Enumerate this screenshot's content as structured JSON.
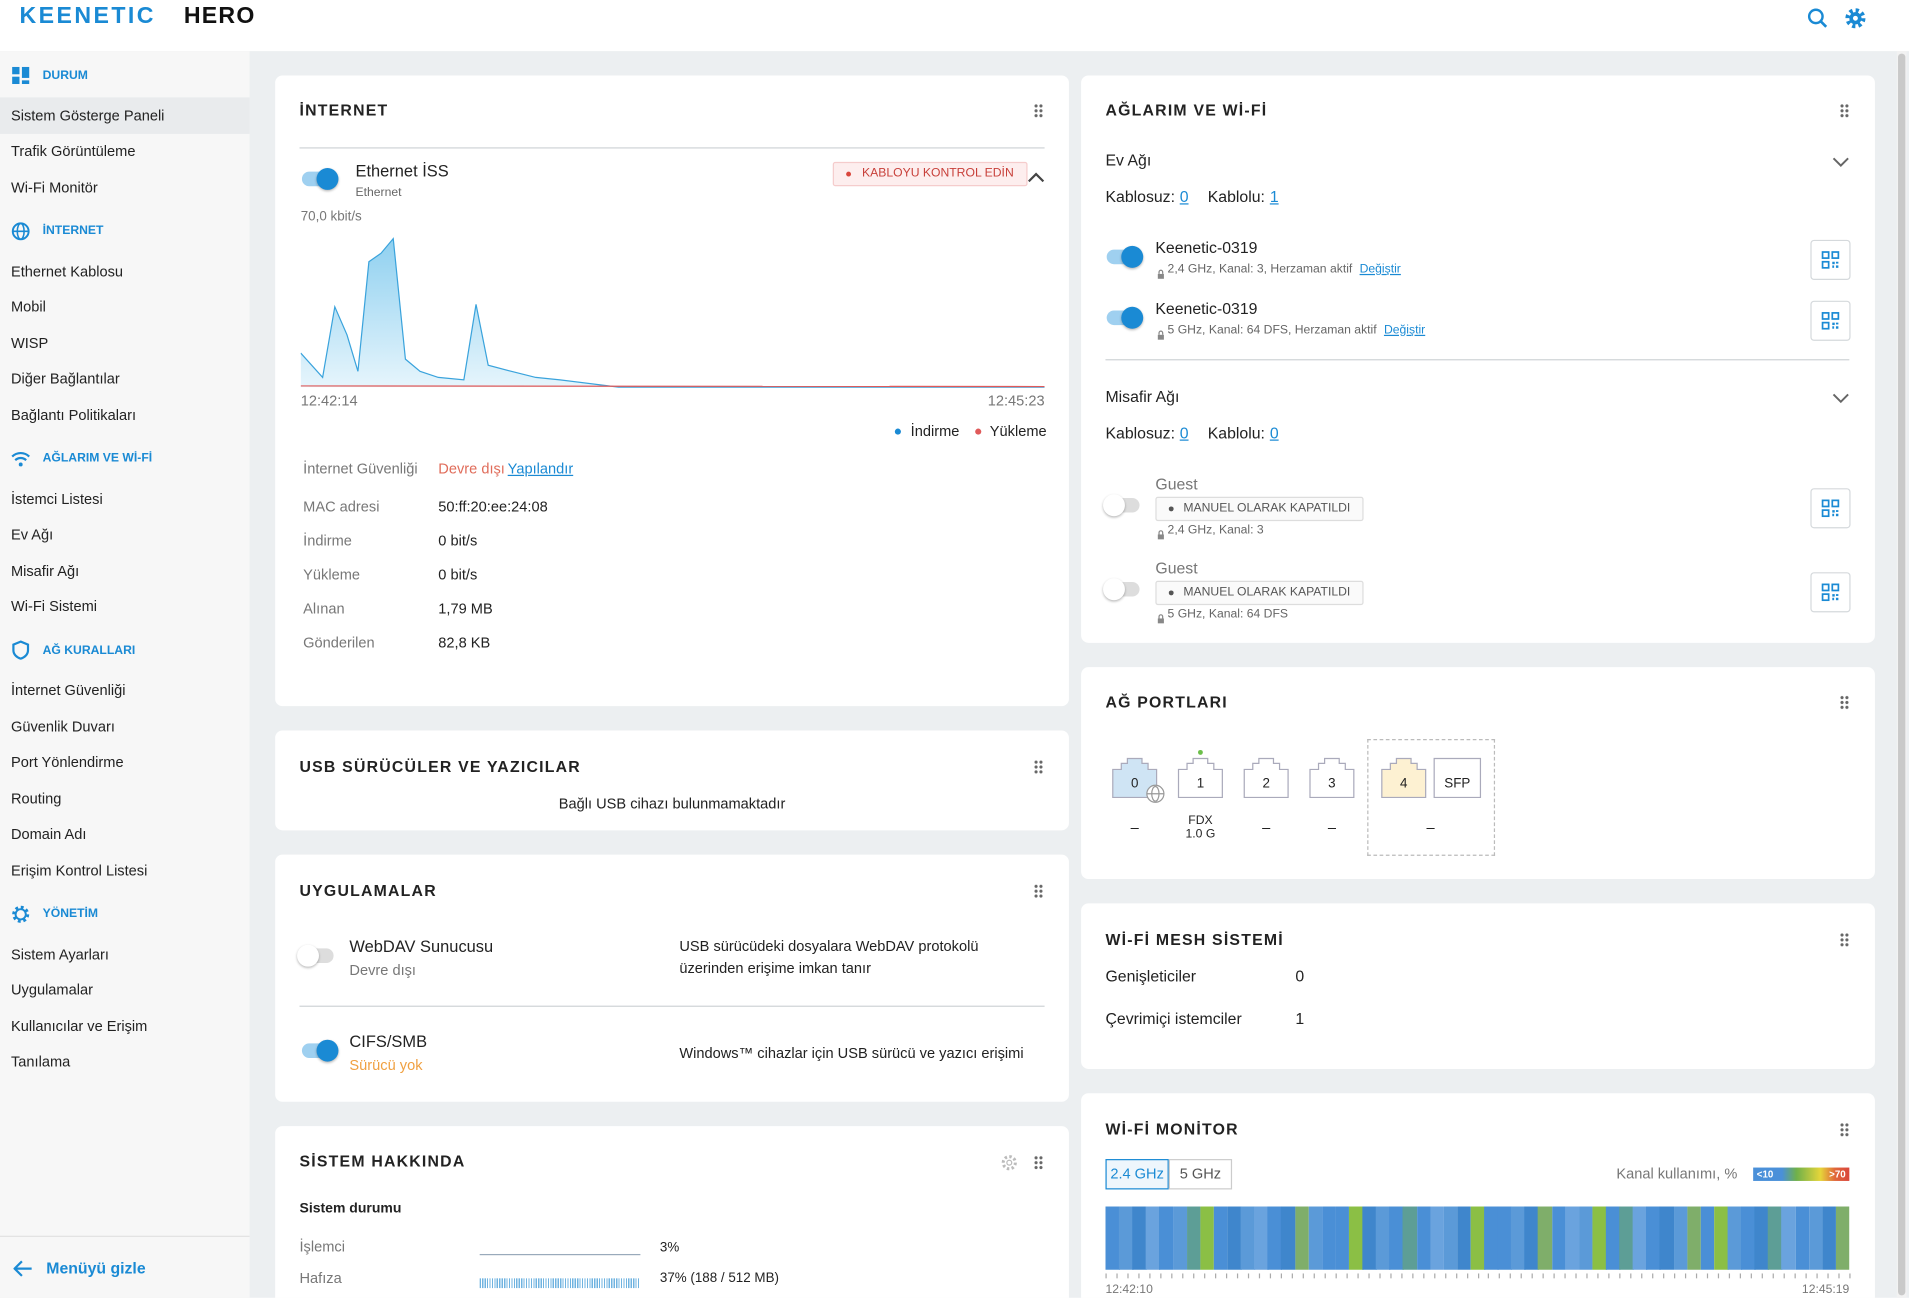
{
  "header": {
    "brand": "KEENETIC",
    "model": "HERO"
  },
  "sidebar": {
    "sections": [
      {
        "title": "DURUM",
        "items": [
          "Sistem Gösterge Paneli",
          "Trafik Görüntüleme",
          "Wi-Fi Monitör"
        ]
      },
      {
        "title": "İNTERNET",
        "items": [
          "Ethernet Kablosu",
          "Mobil",
          "WISP",
          "Diğer Bağlantılar",
          "Bağlantı Politikaları"
        ]
      },
      {
        "title": "AĞLARIM VE Wİ-Fİ",
        "items": [
          "İstemci Listesi",
          "Ev Ağı",
          "Misafir Ağı",
          "Wi-Fi Sistemi"
        ]
      },
      {
        "title": "AĞ KURALLARI",
        "items": [
          "İnternet Güvenliği",
          "Güvenlik Duvarı",
          "Port Yönlendirme",
          "Routing",
          "Domain Adı",
          "Erişim Kontrol Listesi"
        ]
      },
      {
        "title": "YÖNETİM",
        "items": [
          "Sistem Ayarları",
          "Uygulamalar",
          "Kullanıcılar ve Erişim",
          "Tanılama"
        ]
      }
    ],
    "hide_menu": "Menüyü gizle"
  },
  "internet": {
    "title": "İNTERNET",
    "connection": {
      "name": "Ethernet İSS",
      "type": "Ethernet",
      "status": "KABLOYU KONTROL EDİN"
    },
    "graph": {
      "max": "70,0 kbit/s",
      "start": "12:42:14",
      "end": "12:45:23",
      "legend": [
        "İndirme",
        "Yükleme"
      ]
    },
    "details": [
      {
        "label": "İnternet Güvenliği",
        "value": "Devre dışı",
        "link": "Yapılandır"
      },
      {
        "label": "MAC adresi",
        "value": "50:ff:20:ee:24:08"
      },
      {
        "label": "İndirme",
        "value": "0 bit/s"
      },
      {
        "label": "Yükleme",
        "value": "0 bit/s"
      },
      {
        "label": "Alınan",
        "value": "1,79 MB"
      },
      {
        "label": "Gönderilen",
        "value": "82,8 KB"
      }
    ]
  },
  "usb": {
    "title": "USB SÜRÜCÜLER VE YAZICILAR",
    "message": "Bağlı USB cihazı bulunmamaktadır"
  },
  "apps": {
    "title": "UYGULAMALAR",
    "items": [
      {
        "name": "WebDAV Sunucusu",
        "status": "Devre dışı",
        "description": "USB sürücüdeki dosyalara WebDAV protokolü üzerinden erişime imkan tanır"
      },
      {
        "name": "CIFS/SMB",
        "status": "Sürücü yok",
        "description": "Windows™ cihazlar için USB sürücü ve yazıcı erişimi"
      }
    ]
  },
  "system": {
    "title": "SİSTEM HAKKINDA",
    "subtitle": "Sistem durumu",
    "rows": [
      {
        "label": "İşlemci",
        "value": "3%"
      },
      {
        "label": "Hafıza",
        "value": "37% (188 / 512 MB)"
      }
    ]
  },
  "networks": {
    "title": "AĞLARIM VE Wİ-Fİ",
    "groups": [
      {
        "name": "Ev Ağı",
        "wireless_label": "Kablosuz:",
        "wireless": "0",
        "wired_label": "Kablolu:",
        "wired": "1",
        "wifi": [
          {
            "ssid": "Keenetic-0319",
            "details": "2,4 GHz,  Kanal: 3, Herzaman aktif",
            "link": "Değiştir"
          },
          {
            "ssid": "Keenetic-0319",
            "details": "5 GHz,  Kanal: 64 DFS, Herzaman aktif",
            "link": "Değiştir"
          }
        ]
      },
      {
        "name": "Misafir Ağı",
        "wireless_label": "Kablosuz:",
        "wireless": "0",
        "wired_label": "Kablolu:",
        "wired": "0",
        "wifi": [
          {
            "ssid": "Guest",
            "badge": "MANUEL OLARAK KAPATILDI",
            "details": "2,4 GHz,  Kanal: 3"
          },
          {
            "ssid": "Guest",
            "badge": "MANUEL OLARAK KAPATILDI",
            "details": "5 GHz,  Kanal: 64 DFS"
          }
        ]
      }
    ]
  },
  "ports": {
    "title": "AĞ PORTLARI",
    "ports": [
      {
        "label": "0",
        "status": [
          "–"
        ]
      },
      {
        "label": "1",
        "status": [
          "FDX",
          "1.0 G"
        ]
      },
      {
        "label": "2",
        "status": [
          "–"
        ]
      },
      {
        "label": "3",
        "status": [
          "–"
        ]
      }
    ],
    "combo": {
      "labels": [
        "4",
        "SFP"
      ],
      "status": "–"
    }
  },
  "mesh": {
    "title": "Wİ-Fİ MESH SİSTEMİ",
    "rows": [
      {
        "label": "Genişleticiler",
        "value": "0"
      },
      {
        "label": "Çevrimiçi istemciler",
        "value": "1"
      }
    ]
  },
  "monitor": {
    "title": "Wİ-Fİ MONİTOR",
    "tabs": [
      "2.4 GHz",
      "5 GHz"
    ],
    "usage_label": "Kanal kullanımı, %",
    "scale": [
      "<10",
      ">70"
    ],
    "start": "12:42:10",
    "end": "12:45:19"
  }
}
